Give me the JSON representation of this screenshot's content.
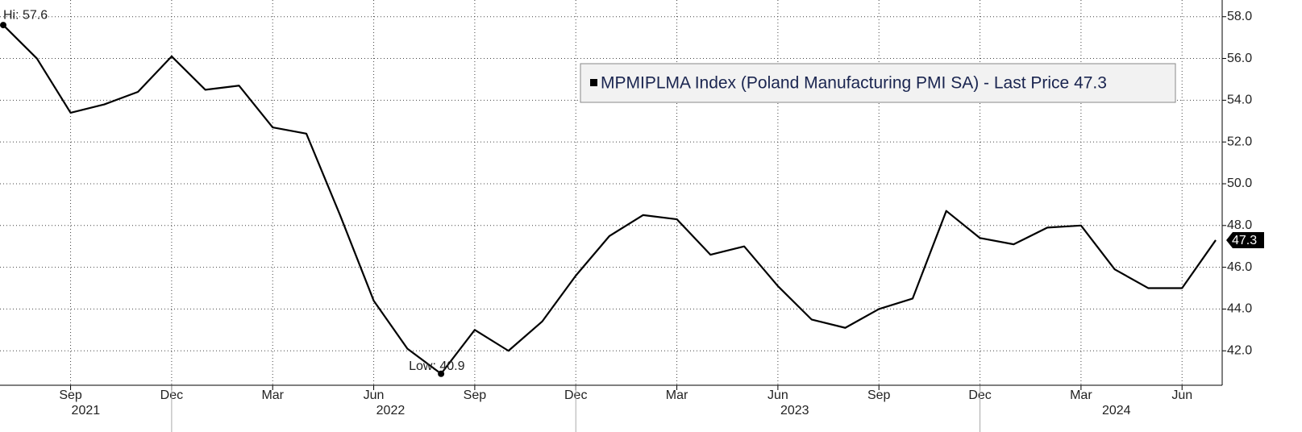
{
  "chart_data": {
    "type": "line",
    "x": [
      "2021-07",
      "2021-08",
      "2021-09",
      "2021-10",
      "2021-11",
      "2021-12",
      "2022-01",
      "2022-02",
      "2022-03",
      "2022-04",
      "2022-05",
      "2022-06",
      "2022-07",
      "2022-08",
      "2022-09",
      "2022-10",
      "2022-11",
      "2022-12",
      "2023-01",
      "2023-02",
      "2023-03",
      "2023-04",
      "2023-05",
      "2023-06",
      "2023-07",
      "2023-08",
      "2023-09",
      "2023-10",
      "2023-11",
      "2023-12",
      "2024-01",
      "2024-02",
      "2024-03",
      "2024-04",
      "2024-05",
      "2024-06",
      "2024-07"
    ],
    "series": [
      {
        "name": "MPMIPLMA Index (Poland Manufacturing PMI SA) - Last Price 47.3",
        "color": "#000000",
        "values": [
          57.6,
          56.0,
          53.4,
          53.8,
          54.4,
          56.1,
          54.5,
          54.7,
          52.7,
          52.4,
          48.5,
          44.4,
          42.1,
          40.9,
          43.0,
          42.0,
          43.4,
          45.6,
          47.5,
          48.5,
          48.3,
          46.6,
          47.0,
          45.1,
          43.5,
          43.1,
          44.0,
          44.5,
          48.7,
          47.4,
          47.1,
          47.9,
          48.0,
          45.9,
          45.0,
          45.0,
          47.3
        ]
      }
    ],
    "xlim": [
      "2021-07",
      "2024-07"
    ],
    "xticks": [
      {
        "value": "2021-09",
        "label": "Sep"
      },
      {
        "value": "2021-12",
        "label": "Dec"
      },
      {
        "value": "2022-03",
        "label": "Mar"
      },
      {
        "value": "2022-06",
        "label": "Jun"
      },
      {
        "value": "2022-09",
        "label": "Sep"
      },
      {
        "value": "2022-12",
        "label": "Dec"
      },
      {
        "value": "2023-03",
        "label": "Mar"
      },
      {
        "value": "2023-06",
        "label": "Jun"
      },
      {
        "value": "2023-09",
        "label": "Sep"
      },
      {
        "value": "2023-12",
        "label": "Dec"
      },
      {
        "value": "2024-03",
        "label": "Mar"
      },
      {
        "value": "2024-06",
        "label": "Jun"
      }
    ],
    "years": [
      "2021",
      "2022",
      "2023",
      "2024"
    ],
    "ylim": [
      40.35,
      58.8
    ],
    "yticks": [
      {
        "value": 42,
        "label": "42.0"
      },
      {
        "value": 44,
        "label": "44.0"
      },
      {
        "value": 46,
        "label": "46.0"
      },
      {
        "value": 48,
        "label": "48.0"
      },
      {
        "value": 50,
        "label": "50.0"
      },
      {
        "value": 52,
        "label": "52.0"
      },
      {
        "value": 54,
        "label": "54.0"
      },
      {
        "value": 56,
        "label": "56.0"
      },
      {
        "value": 58,
        "label": "58.0"
      }
    ],
    "grid": true,
    "annotations": [
      {
        "text": "Hi: 57.6",
        "x": "2021-07",
        "y": 57.6
      },
      {
        "text": "Low: 40.9",
        "x": "2022-08",
        "y": 40.9
      }
    ],
    "last_price_label": "47.3"
  }
}
